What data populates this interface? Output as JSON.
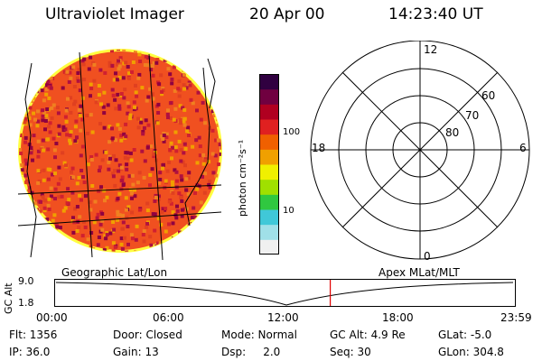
{
  "header": {
    "instrument": "Ultraviolet Imager",
    "date": "20 Apr 00",
    "time": "14:23:40 UT"
  },
  "colorbar": {
    "unit_label": "photon cm⁻²s⁻¹",
    "ticks": [
      "100",
      "10"
    ],
    "colors": [
      "#f0f0f0",
      "#a0e0e8",
      "#40c8d8",
      "#30c840",
      "#a0e000",
      "#f0f000",
      "#f0a000",
      "#f06000",
      "#e02020",
      "#b00020",
      "#700040",
      "#300040"
    ]
  },
  "polar_plot": {
    "mlt_labels": [
      "12",
      "18",
      "6",
      "0"
    ],
    "lat_labels": [
      "60",
      "70",
      "80"
    ]
  },
  "timeline": {
    "left_label": "Geographic Lat/Lon",
    "right_label": "Apex MLat/MLT",
    "axis_title": "GC Alt",
    "y_top": "9.0",
    "y_bottom": "1.8",
    "time_ticks": [
      "00:00",
      "06:00",
      "12:00",
      "18:00",
      "23:59"
    ],
    "current_time_fraction": 0.6
  },
  "status": {
    "flt": "Flt: 1356",
    "door": "Door: Closed",
    "mode": "Mode: Normal",
    "gc_alt": "GC Alt: 4.9 Re",
    "glat": "GLat:  -5.0",
    "ip": "IP: 36.0",
    "gain": "Gain: 13",
    "dsp": "Dsp:     2.0",
    "seq": "Seq: 30",
    "glon": "GLon: 304.8"
  }
}
